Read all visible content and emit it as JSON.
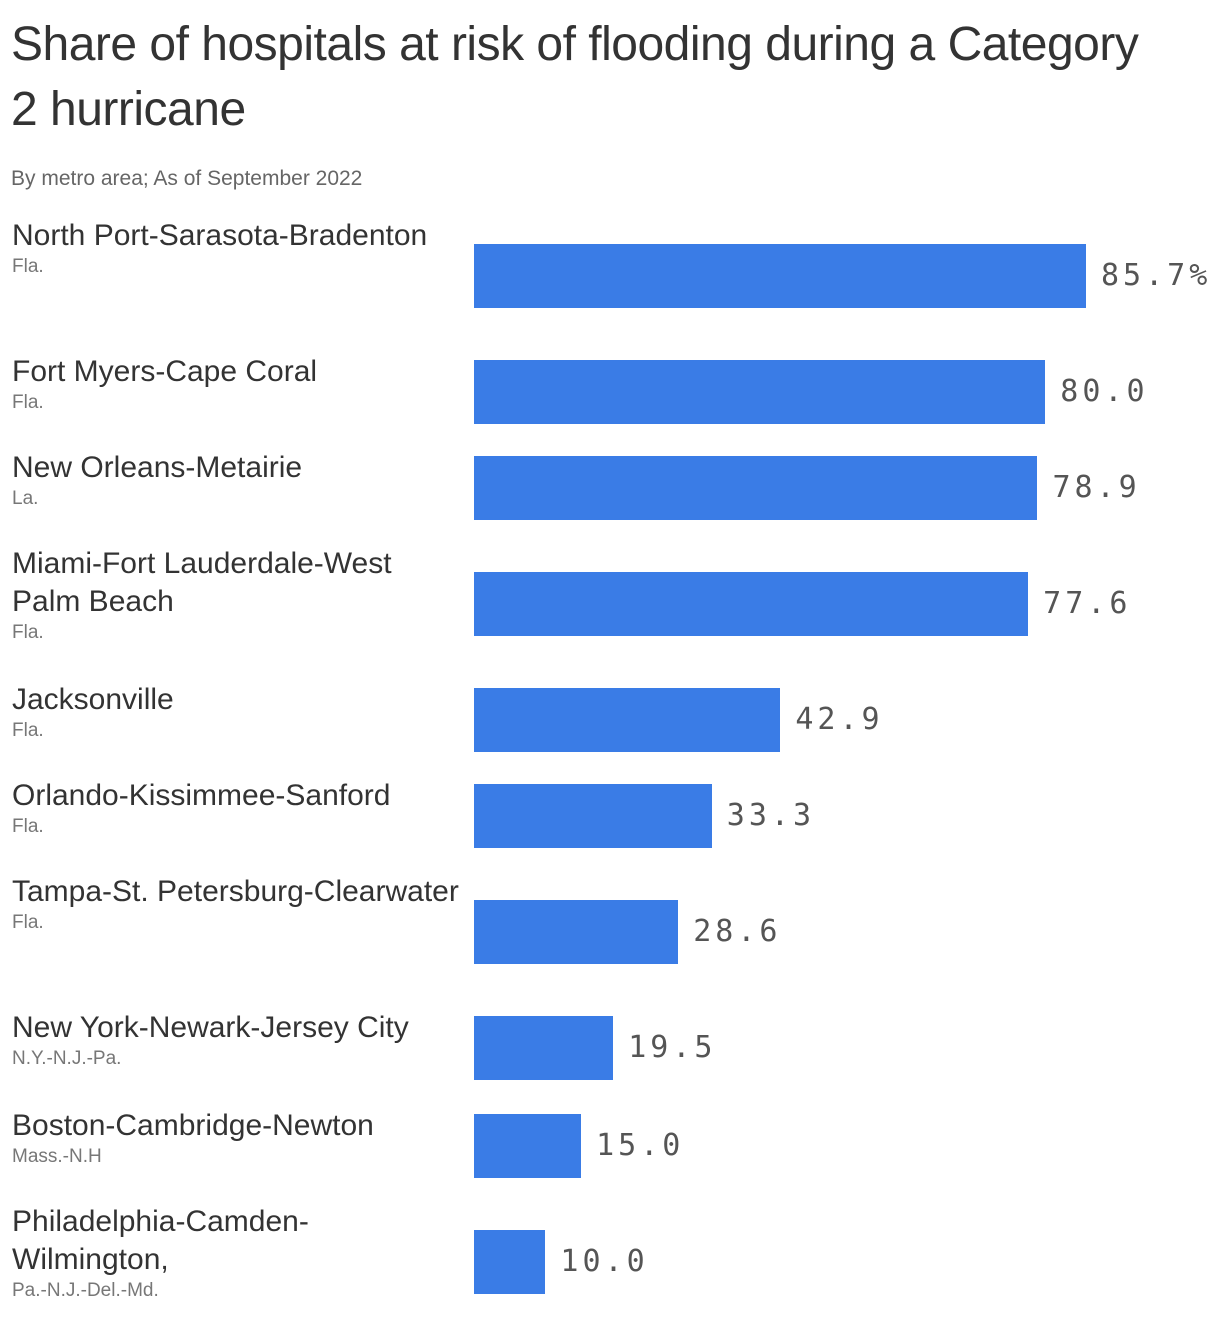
{
  "title": "Share of hospitals at risk of flooding during a Category 2 hurricane",
  "subtitle": "By metro area; As of September 2022",
  "colors": {
    "bar": "#3a7ce6",
    "title": "#333333",
    "value": "#555555"
  },
  "chart_data": {
    "type": "bar",
    "orientation": "horizontal",
    "title": "Share of hospitals at risk of flooding during a Category 2 hurricane",
    "subtitle": "By metro area; As of September 2022",
    "xlim": [
      0,
      100
    ],
    "grid": false,
    "categories": [
      "North Port-Sarasota-Bradenton",
      "Fort Myers-Cape Coral",
      "New Orleans-Metairie",
      "Miami-Fort Lauderdale-West Palm Beach",
      "Jacksonville",
      "Orlando-Kissimmee-Sanford",
      "Tampa-St. Petersburg-Clearwater",
      "New York-Newark-Jersey City",
      "Boston-Cambridge-Newton",
      "Philadelphia-Camden-Wilmington,"
    ],
    "states": [
      "Fla.",
      "Fla.",
      "La.",
      "Fla.",
      "Fla.",
      "Fla.",
      "Fla.",
      "N.Y.-N.J.-Pa.",
      "Mass.-N.H",
      "Pa.-N.J.-Del.-Md."
    ],
    "values": [
      85.7,
      80.0,
      78.9,
      77.6,
      42.9,
      33.3,
      28.6,
      19.5,
      15.0,
      10.0
    ],
    "value_labels": [
      "85.7%",
      "80.0",
      "78.9",
      "77.6",
      "42.9",
      "33.3",
      "28.6",
      "19.5",
      "15.0",
      "10.0"
    ]
  }
}
